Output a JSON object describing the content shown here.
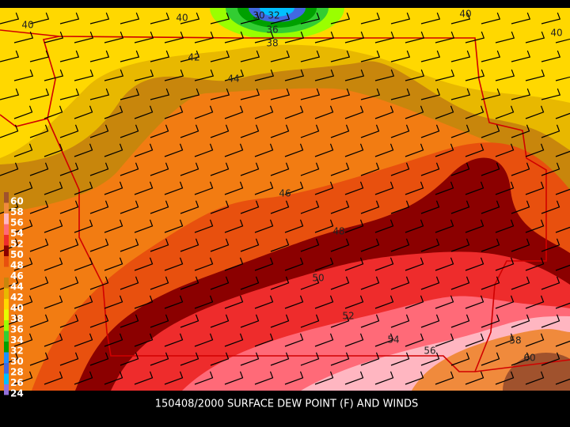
{
  "caption": "150408/2000 SURFACE DEW POINT (F) AND WINDS",
  "legend": {
    "levels": [
      60,
      58,
      56,
      54,
      52,
      50,
      48,
      46,
      44,
      42,
      40,
      38,
      36,
      34,
      32,
      30,
      28,
      26,
      24
    ],
    "colors": [
      "#a0522d",
      "#f08a3c",
      "#ffb6c1",
      "#ff6a78",
      "#ee2c2c",
      "#8b0000",
      "#e8500e",
      "#f27c12",
      "#c8860c",
      "#e8b800",
      "#ffd800",
      "#e6ff00",
      "#9aff00",
      "#32cd32",
      "#00a000",
      "#1e90ff",
      "#4169e1",
      "#00bfff",
      "#9370db"
    ]
  },
  "contour_labels": [
    40,
    40,
    40,
    40,
    30,
    32,
    36,
    38,
    42,
    44,
    46,
    48,
    50,
    52,
    54,
    56,
    58,
    60
  ]
}
